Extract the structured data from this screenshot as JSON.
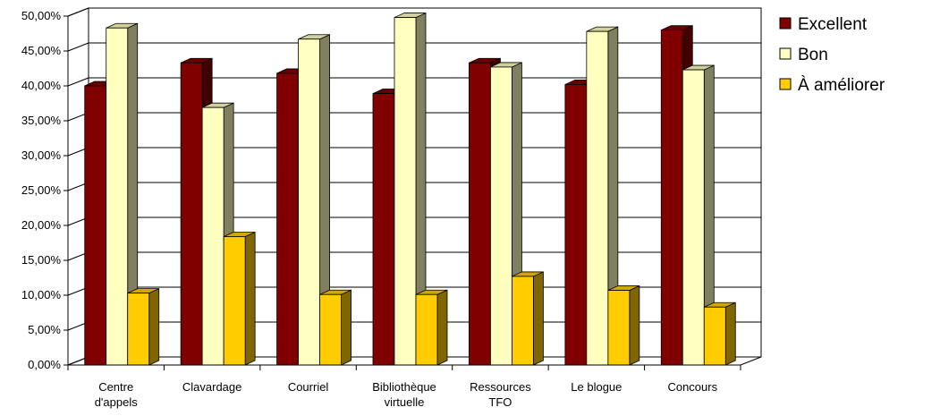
{
  "chart_data": {
    "type": "bar",
    "style": "3d-clustered-column",
    "categories": [
      [
        "Centre",
        "d'appels"
      ],
      [
        "Clavardage"
      ],
      [
        "Courriel"
      ],
      [
        "Bibliothèque",
        "virtuelle"
      ],
      [
        "Ressources",
        "TFO"
      ],
      [
        "Le blogue"
      ],
      [
        "Concours"
      ]
    ],
    "series": [
      {
        "name": "Excellent",
        "color": "#800000",
        "values": [
          40.0,
          43.3,
          41.8,
          38.9,
          43.3,
          40.2,
          48.0
        ]
      },
      {
        "name": "Bon",
        "color": "#FFFFC0",
        "values": [
          48.3,
          36.9,
          46.7,
          49.8,
          42.7,
          47.8,
          42.3
        ]
      },
      {
        "name": "À améliorer",
        "color": "#FFCC00",
        "values": [
          10.3,
          18.4,
          10.1,
          10.1,
          12.7,
          10.7,
          8.3
        ]
      }
    ],
    "yticks": [
      "0,00%",
      "5,00%",
      "10,00%",
      "15,00%",
      "20,00%",
      "25,00%",
      "30,00%",
      "35,00%",
      "40,00%",
      "45,00%",
      "50,00%"
    ],
    "ylim": [
      0,
      50
    ],
    "grid": true,
    "legend": "right"
  }
}
